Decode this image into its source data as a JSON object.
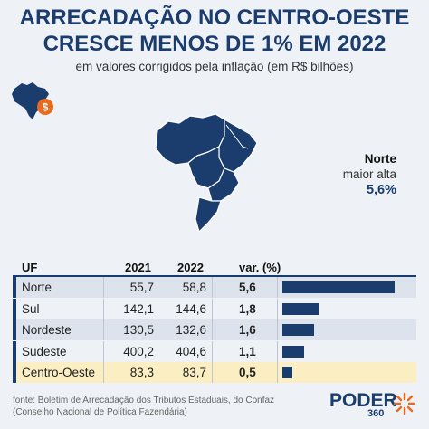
{
  "title_line1": "ARRECADAÇÃO NO CENTRO-OESTE",
  "title_line2": "CRESCE MENOS DE 1% EM 2022",
  "subtitle": "em valores corrigidos pela inflação (em R$ bilhões)",
  "callout": {
    "region": "Norte",
    "label": "maior alta",
    "value": "5,6%"
  },
  "table_headers": {
    "uf": "UF",
    "y2021": "2021",
    "y2022": "2022",
    "var": "var. (%)"
  },
  "chart_data": {
    "type": "table",
    "columns": [
      "UF",
      "2021",
      "2022",
      "var. (%)"
    ],
    "rows": [
      {
        "uf": "Norte",
        "y2021": "55,7",
        "y2022": "58,8",
        "var": "5,6",
        "value": 5.6,
        "highlight": false
      },
      {
        "uf": "Sul",
        "y2021": "142,1",
        "y2022": "144,6",
        "var": "1,8",
        "value": 1.8,
        "highlight": false
      },
      {
        "uf": "Nordeste",
        "y2021": "130,5",
        "y2022": "132,6",
        "var": "1,6",
        "value": 1.6,
        "highlight": false
      },
      {
        "uf": "Sudeste",
        "y2021": "400,2",
        "y2022": "404,6",
        "var": "1,1",
        "value": 1.1,
        "highlight": false
      },
      {
        "uf": "Centro-Oeste",
        "y2021": "83,3",
        "y2022": "83,7",
        "var": "0,5",
        "value": 0.5,
        "highlight": true
      }
    ],
    "bar_max": 5.6
  },
  "footnote_line1": "fonte: Boletim de Arrecadação dos Tributos Estaduais, do Confaz",
  "footnote_line2": "(Conselho Nacional de Política Fazendária)",
  "logo": {
    "word1": "PODER",
    "word2": "360"
  },
  "colors": {
    "primary": "#1a3d6e",
    "accent": "#e86a1a",
    "highlight_row": "#fbeec2"
  },
  "icons": {
    "mini_map": "brazil-map-icon",
    "coin": "dollar-coin-icon"
  }
}
